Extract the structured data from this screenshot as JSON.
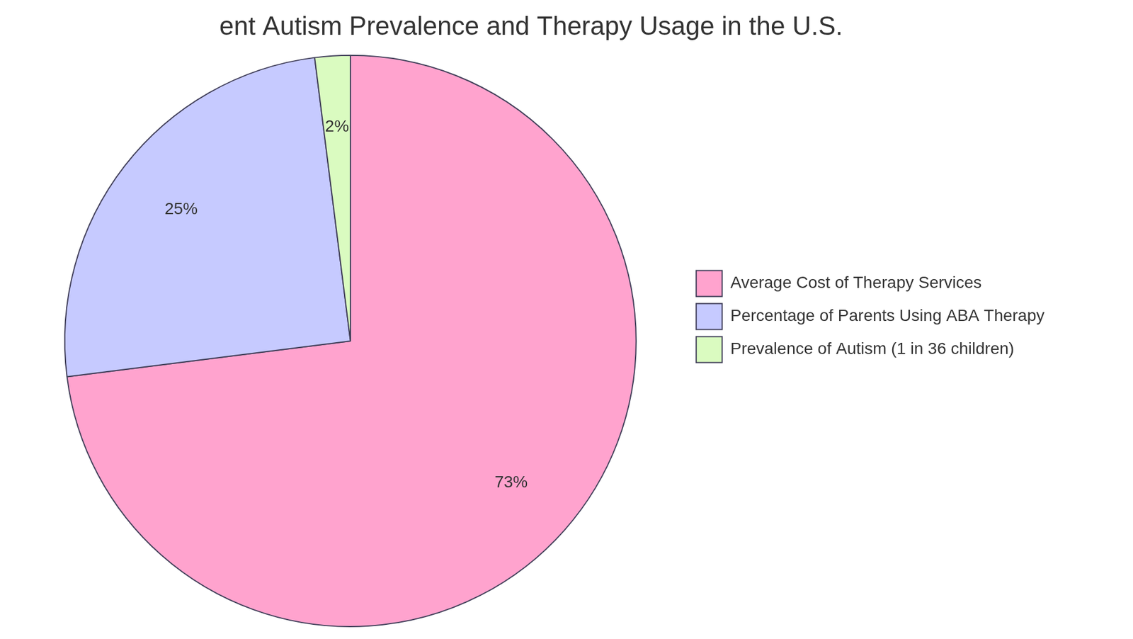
{
  "chart_data": {
    "type": "pie",
    "title": "ent Autism Prevalence and Therapy Usage in the U.S.",
    "categories": [
      "Average Cost of Therapy Services",
      "Percentage of Parents Using ABA Therapy",
      "Prevalence of Autism (1 in 36 children)"
    ],
    "values": [
      73,
      25,
      2
    ],
    "value_labels": [
      "73%",
      "25%",
      "2%"
    ],
    "colors": [
      "#ffa3ce",
      "#c6caff",
      "#dafbc0"
    ],
    "data_labels": true,
    "legend": "right"
  }
}
